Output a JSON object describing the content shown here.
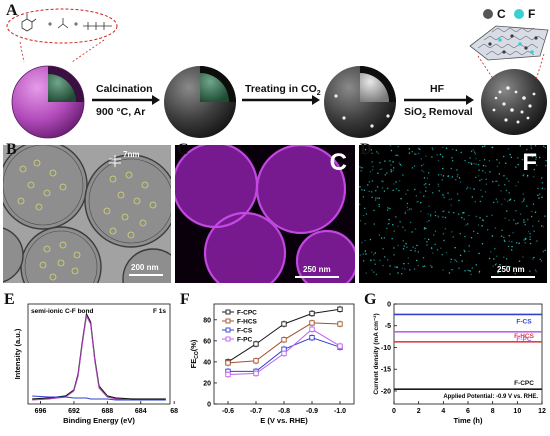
{
  "panel_letters": [
    "A",
    "B",
    "C",
    "D",
    "E",
    "F",
    "G"
  ],
  "panel_a": {
    "legend": {
      "c": "C",
      "f": "F"
    },
    "step1": {
      "line1": "Calcination",
      "line2": "900 °C, Ar"
    },
    "step2": {
      "line1": "Treating in CO",
      "sub": "2"
    },
    "step3": {
      "line1": "HF",
      "line2": "SiO",
      "sub": "2",
      "line2_rest": " Removal"
    }
  },
  "panel_b": {
    "scale": "200 nm",
    "pore": "7nm"
  },
  "panel_c": {
    "element": "C",
    "scale": "250 nm",
    "color": "#b02bd0"
  },
  "panel_d": {
    "element": "F",
    "scale": "250 nm",
    "color": "#2ec4c4"
  },
  "chart_data": [
    {
      "type": "line",
      "panel": "E",
      "title": "semi-ionic C-F bond",
      "annotation": "F 1s",
      "xlabel": "Binding Energy (eV)",
      "ylabel": "Intensity (a.u.)",
      "xticks": [
        "696",
        "692",
        "688",
        "684",
        "68"
      ],
      "x": [
        697,
        695,
        693,
        692,
        691.5,
        691,
        690.5,
        690,
        689.5,
        689,
        688,
        687,
        685,
        683,
        681
      ],
      "series": [
        {
          "values": [
            0.05,
            0.06,
            0.08,
            0.14,
            0.3,
            0.62,
            0.9,
            0.82,
            0.45,
            0.18,
            0.08,
            0.06,
            0.05,
            0.05,
            0.05
          ],
          "color": "#1a1a1a"
        },
        {
          "values": [
            0.04,
            0.05,
            0.07,
            0.13,
            0.28,
            0.6,
            0.88,
            0.8,
            0.43,
            0.16,
            0.07,
            0.05,
            0.04,
            0.04,
            0.04
          ],
          "color": "#b040c0"
        },
        {
          "values": [
            0.08,
            0.07,
            0.07,
            0.06,
            0.06,
            0.06,
            0.06,
            0.05,
            0.05,
            0.05,
            0.05,
            0.04,
            0.04,
            0.04,
            0.04
          ],
          "color": "#3040d0"
        }
      ]
    },
    {
      "type": "line",
      "panel": "F",
      "xlabel": "E (V vs. RHE)",
      "ylabel": "FE",
      "ylabel_sub": "CO",
      "ylabel_rest": "(%)",
      "categories": [
        "-0.6",
        "-0.7",
        "-0.8",
        "-0.9",
        "-1.0"
      ],
      "yticks": [
        "0",
        "20",
        "40",
        "60",
        "80"
      ],
      "ylim": [
        0,
        95
      ],
      "series": [
        {
          "name": "F-CPC",
          "values": [
            40,
            57,
            76,
            86,
            90
          ],
          "color": "#1a1a1a"
        },
        {
          "name": "F-HCS",
          "values": [
            39,
            41,
            61,
            77,
            76
          ],
          "color": "#a0522d"
        },
        {
          "name": "F-CS",
          "values": [
            31,
            31,
            52,
            63,
            54
          ],
          "color": "#3040d0"
        },
        {
          "name": "F-PC",
          "values": [
            28,
            29,
            48,
            71,
            55
          ],
          "color": "#c060f0"
        }
      ]
    },
    {
      "type": "line",
      "panel": "G",
      "xlabel": "Time (h)",
      "ylabel": "Current density (mA cm⁻²)",
      "annotation": "Applied Potential: -0.9 V vs. RHE.",
      "xticks": [
        "0",
        "2",
        "4",
        "6",
        "8",
        "10",
        "12"
      ],
      "yticks": [
        "0",
        "-5",
        "-10",
        "-15",
        "-20"
      ],
      "xlim": [
        0,
        12
      ],
      "ylim": [
        -23,
        0
      ],
      "series": [
        {
          "name": "F-CS",
          "value": -2.4,
          "color": "#3040d0"
        },
        {
          "name": "F-PC",
          "value": -6.4,
          "color": "#c060f0"
        },
        {
          "name": "F-HCS",
          "value": -8.7,
          "color": "#e04040"
        },
        {
          "name": "F-CPC",
          "value": -19.6,
          "color": "#1a1a1a"
        }
      ]
    }
  ]
}
